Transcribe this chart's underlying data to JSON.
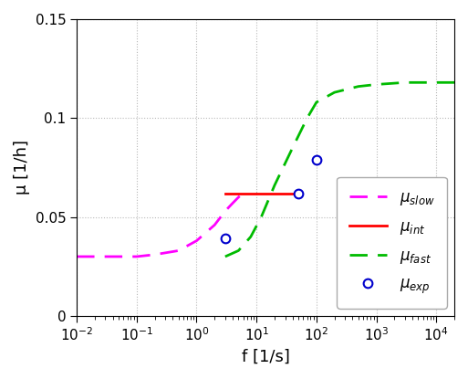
{
  "xlabel": "f [1/s]",
  "ylabel": "μ [1/h]",
  "xlim": [
    0.01,
    20000
  ],
  "ylim": [
    0,
    0.15
  ],
  "yticks": [
    0,
    0.05,
    0.1,
    0.15
  ],
  "background_color": "#ffffff",
  "mu_slow": {
    "color": "#ff00ff",
    "x": [
      0.01,
      0.02,
      0.05,
      0.1,
      0.2,
      0.5,
      1.0,
      2.0,
      3.0,
      4.0,
      5.0,
      6.0,
      7.0
    ],
    "y": [
      0.03,
      0.03,
      0.03,
      0.03,
      0.031,
      0.033,
      0.038,
      0.046,
      0.053,
      0.057,
      0.06,
      0.062,
      0.062
    ]
  },
  "mu_int": {
    "color": "#ff0000",
    "x": [
      3.0,
      55.0
    ],
    "y": [
      0.062,
      0.062
    ]
  },
  "mu_fast": {
    "color": "#00bb00",
    "x": [
      3.0,
      5.0,
      8.0,
      12.0,
      20.0,
      40.0,
      70.0,
      100.0,
      200.0,
      500.0,
      1000.0,
      3000.0,
      6000.0,
      10000.0,
      20000.0
    ],
    "y": [
      0.03,
      0.033,
      0.04,
      0.05,
      0.066,
      0.085,
      0.1,
      0.108,
      0.113,
      0.116,
      0.117,
      0.118,
      0.118,
      0.118,
      0.118
    ]
  },
  "mu_exp": {
    "color": "#0000cc",
    "x": [
      3.0,
      50.0,
      100.0
    ],
    "y": [
      0.039,
      0.062,
      0.079
    ]
  },
  "grid_color": "#999999",
  "legend_fontsize": 12,
  "tick_labelsize": 11,
  "axis_labelsize": 13
}
